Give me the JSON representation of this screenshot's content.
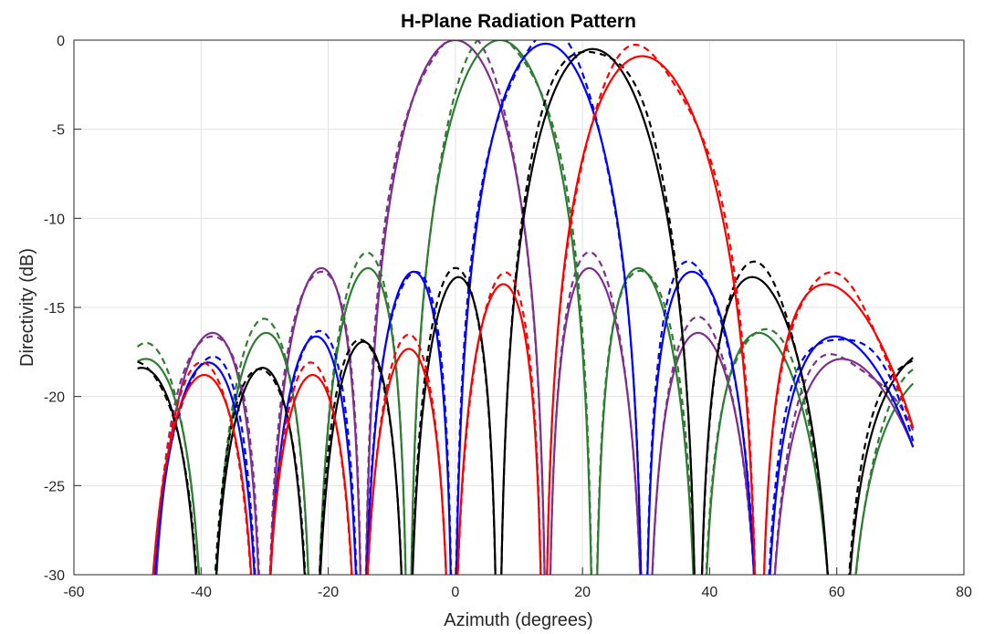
{
  "chart_data": {
    "type": "line",
    "title": "H-Plane Radiation Pattern",
    "xlabel": "Azimuth (degrees)",
    "ylabel": "Directivity (dB)",
    "xlim": [
      -60,
      80
    ],
    "ylim": [
      -30,
      0
    ],
    "xticks": [
      -60,
      -40,
      -20,
      0,
      20,
      40,
      60,
      80
    ],
    "yticks": [
      0,
      -5,
      -10,
      -15,
      -20,
      -25,
      -30
    ],
    "grid": true,
    "legend": "none",
    "model": "Array factor of a uniform linear array (8 elements, half-wavelength spacing), normalized in dB and clipped at the lower axis limit; each color is one steering angle, solid and dashed traces are two closely matching variants.",
    "series": [
      {
        "color": "#7E2F8E",
        "style": "solid",
        "steer_deg": 0,
        "peak_db": 0.0
      },
      {
        "color": "#7E2F8E",
        "style": "dashed",
        "steer_deg": 0,
        "peak_db": 0.0
      },
      {
        "color": "#2E7D32",
        "style": "solid",
        "steer_deg": 7,
        "peak_db": 0.0
      },
      {
        "color": "#2E7D32",
        "style": "dashed",
        "steer_deg": 7,
        "peak_db": 0.0
      },
      {
        "color": "#0000FF",
        "style": "solid",
        "steer_deg": 14.2,
        "peak_db": -0.2
      },
      {
        "color": "#0000FF",
        "style": "dashed",
        "steer_deg": 14.2,
        "peak_db": -0.2
      },
      {
        "color": "#000000",
        "style": "solid",
        "steer_deg": 21.6,
        "peak_db": -0.5
      },
      {
        "color": "#000000",
        "style": "dashed",
        "steer_deg": 21.6,
        "peak_db": -0.5
      },
      {
        "color": "#FF0000",
        "style": "solid",
        "steer_deg": 29.4,
        "peak_db": -0.9
      },
      {
        "color": "#FF0000",
        "style": "dashed",
        "steer_deg": 29.4,
        "peak_db": -1.0
      }
    ]
  }
}
